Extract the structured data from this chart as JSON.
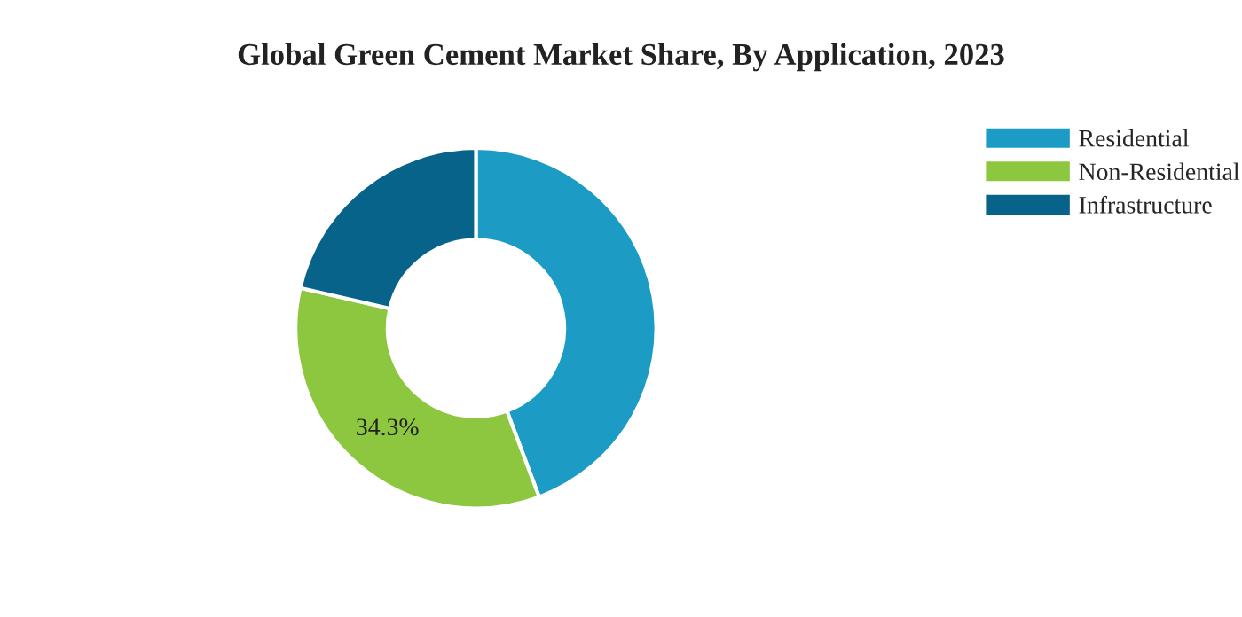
{
  "chart_data": {
    "type": "donut",
    "title": "Global Green Cement Market Share, By Application, 2023",
    "categories": [
      "Residential",
      "Non-Residential",
      "Infrastructure"
    ],
    "values": [
      44.3,
      34.3,
      21.4
    ],
    "colors": [
      "#1c9bc5",
      "#8dc63f",
      "#07638a"
    ],
    "value_labels": [
      null,
      "34.3%",
      null
    ],
    "legend": "top right"
  }
}
